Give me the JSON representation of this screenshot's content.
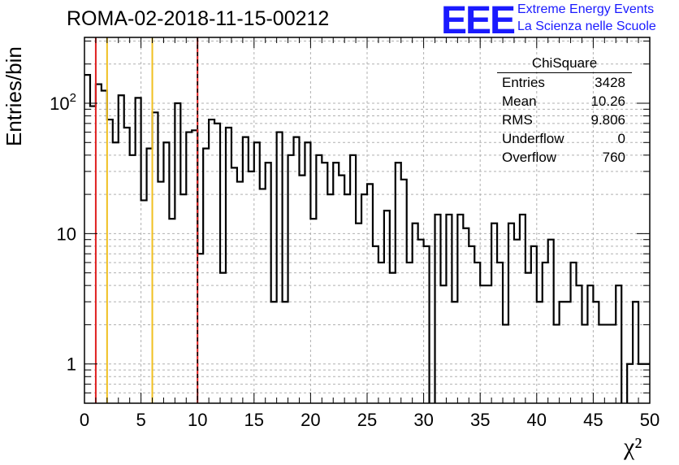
{
  "title": "ROMA-02-2018-11-15-00212",
  "logo": {
    "mark": "EEE",
    "line1": "Extreme Energy Events",
    "line2": "La Scienza nelle Scuole",
    "color": "#1a1aff"
  },
  "stats_box": {
    "title": "ChiSquare",
    "rows": [
      {
        "label": "Entries",
        "value": "3428"
      },
      {
        "label": "Mean",
        "value": "10.26"
      },
      {
        "label": "RMS",
        "value": "9.806"
      },
      {
        "label": "Underflow",
        "value": "0"
      },
      {
        "label": "Overflow",
        "value": "760"
      }
    ]
  },
  "chart_data": {
    "type": "bar",
    "histogram": true,
    "ylabel": "Entries/bin",
    "xlabel": "χ²",
    "xlim": [
      0,
      50
    ],
    "ylim": [
      0.5,
      320
    ],
    "yscale": "log",
    "grid": true,
    "x_ticks": [
      "0",
      "5",
      "10",
      "15",
      "20",
      "25",
      "30",
      "35",
      "40",
      "45",
      "50"
    ],
    "y_ticks": [
      {
        "value": 1,
        "label": "1"
      },
      {
        "value": 10,
        "label": "10"
      },
      {
        "value": 100,
        "label": "10²"
      }
    ],
    "bin_width": 0.5,
    "bin_start": 0,
    "values": [
      165,
      95,
      140,
      125,
      75,
      50,
      115,
      65,
      40,
      110,
      18,
      45,
      85,
      25,
      50,
      13,
      100,
      20,
      60,
      62,
      7,
      45,
      75,
      70,
      5,
      65,
      32,
      25,
      55,
      30,
      50,
      22,
      35,
      3,
      60,
      3,
      40,
      55,
      28,
      50,
      13,
      40,
      35,
      20,
      35,
      28,
      20,
      40,
      12,
      20,
      24,
      8,
      6,
      15,
      5,
      35,
      26,
      6,
      12,
      9,
      8,
      0,
      14,
      4,
      14,
      3,
      14,
      11,
      8,
      6,
      4,
      4,
      12,
      6,
      2,
      12,
      9,
      14,
      5,
      8,
      3,
      6,
      9,
      2,
      3,
      3,
      6,
      4,
      2,
      4,
      3,
      2,
      2,
      2,
      4,
      0,
      1,
      3,
      1,
      1
    ],
    "vertical_lines": [
      {
        "x": 1,
        "color": "#e02020",
        "style": "solid"
      },
      {
        "x": 2,
        "color": "#f0c020",
        "style": "solid"
      },
      {
        "x": 6,
        "color": "#f0c020",
        "style": "solid"
      },
      {
        "x": 10,
        "color": "#e02020",
        "style": "solid"
      },
      {
        "x": 10,
        "color": "#000000",
        "style": "dashed"
      }
    ]
  }
}
